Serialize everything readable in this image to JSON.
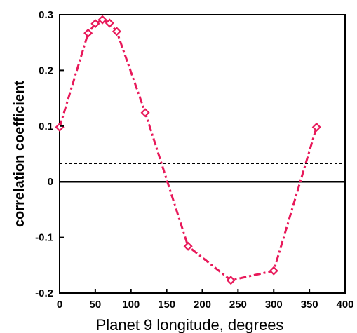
{
  "chart_data": {
    "type": "line",
    "title": "",
    "xlabel": "Planet 9 longitude, degrees",
    "ylabel": "correlation coefficient",
    "xlim": [
      0,
      400
    ],
    "ylim": [
      -0.2,
      0.3
    ],
    "x_ticks": [
      "0",
      "50",
      "100",
      "150",
      "200",
      "250",
      "300",
      "350",
      "400"
    ],
    "y_ticks": [
      "0.3",
      "0.2",
      "0.1",
      "0",
      "-0.1",
      "-0.2"
    ],
    "grid": false,
    "legend": "none",
    "reference_lines": [
      {
        "y": 0,
        "style": "solid",
        "color": "#000000"
      },
      {
        "y": 0.033,
        "style": "dotted",
        "color": "#000000"
      }
    ],
    "series": [
      {
        "color": "#e8195a",
        "marker": "diamond",
        "line_style": "dash-dot",
        "x": [
          0,
          40,
          50,
          60,
          70,
          80,
          120,
          180,
          240,
          300,
          360
        ],
        "y": [
          0.098,
          0.267,
          0.284,
          0.291,
          0.285,
          0.27,
          0.124,
          -0.116,
          -0.177,
          -0.16,
          0.098
        ]
      }
    ]
  }
}
